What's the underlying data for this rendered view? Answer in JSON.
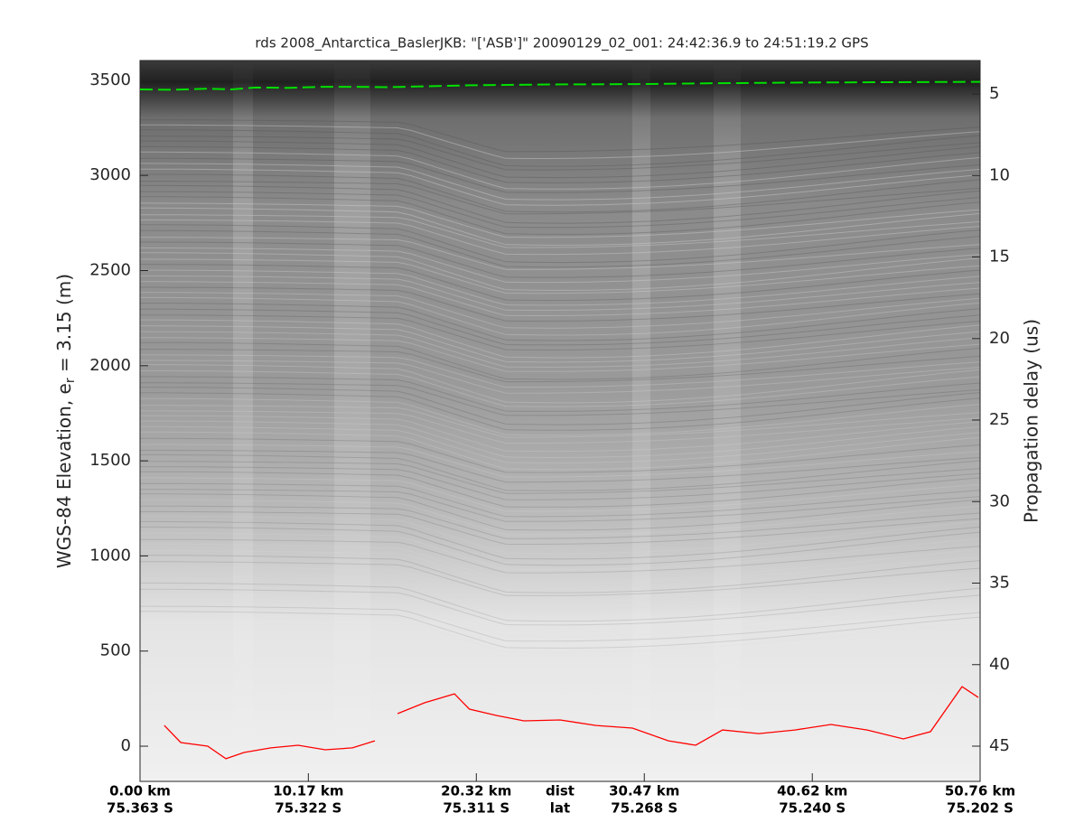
{
  "chart_data": {
    "type": "radargram",
    "title": "rds 2008_Antarctica_BaslerJKB: \"['ASB']\"  20090129_02_001: 24:42:36.9 to 24:51:19.2 GPS",
    "ylabel": "WGS-84 Elevation, e",
    "ylabel_sub": "r",
    "ylabel_rest": " = 3.15 (m)",
    "y2label": "Propagation delay (us)",
    "xlim": [
      0,
      50.76
    ],
    "xticks": [
      {
        "value": 0,
        "label": "0.00 km"
      },
      {
        "value": 10.17,
        "label": "10.17 km"
      },
      {
        "value": 20.32,
        "label": "20.32 km"
      },
      {
        "value": 30.47,
        "label": "30.47 km"
      },
      {
        "value": 40.62,
        "label": "40.62 km"
      },
      {
        "value": 50.76,
        "label": "50.76 km"
      }
    ],
    "lat_labels": [
      "75.363 S",
      "75.322 S",
      "75.311 S",
      "75.268 S",
      "75.240 S",
      "75.202 S"
    ],
    "row_labels": [
      "dist",
      "lat"
    ],
    "ylim": [
      -185,
      3604
    ],
    "yticks": [
      0,
      500,
      1000,
      1500,
      2000,
      2500,
      3000,
      3500
    ],
    "y2lim": [
      47.16,
      2.95
    ],
    "y2ticks": [
      5,
      10,
      15,
      20,
      25,
      30,
      35,
      40,
      45
    ],
    "series": [
      {
        "name": "surface",
        "color": "#00e000",
        "dash": true,
        "x": [
          0,
          2,
          4,
          5.5,
          7,
          9,
          11,
          13,
          15,
          20,
          25,
          30,
          35,
          40,
          45,
          50.76
        ],
        "values": [
          3452,
          3450,
          3456,
          3452,
          3462,
          3460,
          3466,
          3466,
          3464,
          3474,
          3478,
          3480,
          3485,
          3488,
          3490,
          3492
        ]
      },
      {
        "name": "bed",
        "color": "#ff0000",
        "dash": false,
        "x": [
          1.47,
          2.46,
          4.09,
          5.19,
          6.28,
          7.91,
          9.55,
          11.19,
          12.83,
          14.19,
          14.9,
          15.56,
          17.19,
          19.0,
          19.9,
          21.56,
          23.2,
          25.38,
          27.56,
          29.75,
          31.93,
          33.57,
          35.2,
          37.39,
          39.57,
          41.75,
          43.94,
          46.12,
          47.76,
          49.67,
          50.65
        ],
        "values": [
          109,
          19,
          0,
          -66,
          -33,
          -9,
          5,
          -19,
          -9,
          28,
          null,
          171,
          228,
          275,
          195,
          161,
          133,
          138,
          109,
          95,
          28,
          5,
          85,
          66,
          85,
          114,
          85,
          38,
          76,
          313,
          256
        ]
      }
    ]
  }
}
